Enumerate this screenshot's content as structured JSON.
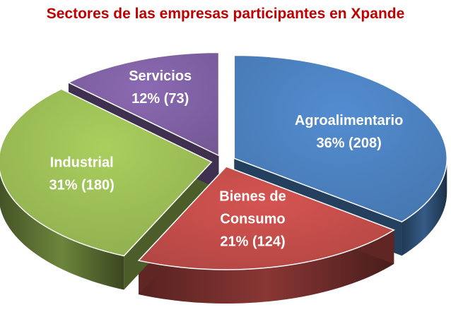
{
  "chart_data": {
    "type": "pie",
    "title": "Sectores de las empresas participantes en Xpande",
    "style": "3d-exploded",
    "slices": [
      {
        "label": "Agroalimentario",
        "percent": 36,
        "count": 208,
        "text": "36% (208)",
        "color": "#4a7ebb"
      },
      {
        "label": "Bienes de Consumo",
        "percent": 21,
        "count": 124,
        "text": "21% (124)",
        "color": "#be4b48"
      },
      {
        "label": "Industrial",
        "percent": 31,
        "count": 180,
        "text": "31% (180)",
        "color": "#98b954"
      },
      {
        "label": "Servicios",
        "percent": 12,
        "count": 73,
        "text": "12% (73)",
        "color": "#7d5fa0"
      }
    ]
  }
}
